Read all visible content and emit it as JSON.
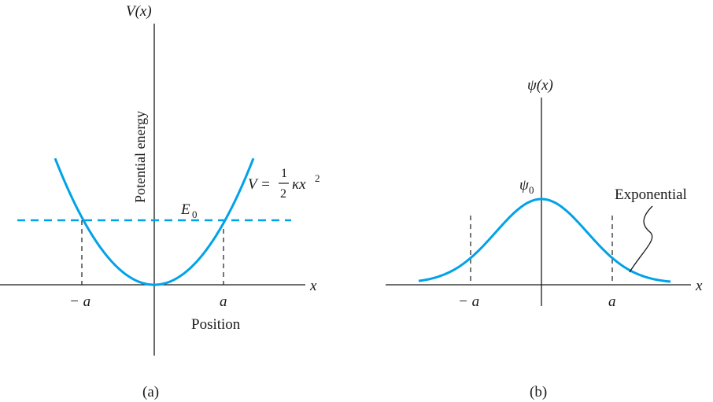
{
  "colors": {
    "curve": "#00a3e8",
    "ink": "#1a1a1a",
    "background": "#ffffff"
  },
  "panel_a": {
    "y_axis_label": "V(x)",
    "y_axis_title": "Potential energy",
    "x_axis_label": "x",
    "x_axis_title": "Position",
    "tick_neg_a": "− a",
    "tick_a": "a",
    "energy_label": "E",
    "energy_subscript": "0",
    "formula_lhs": "V =",
    "formula_num": "1",
    "formula_den": "2",
    "formula_rhs": "κx",
    "formula_exp": "2",
    "caption": "(a)"
  },
  "panel_b": {
    "y_axis_label": "ψ(x)",
    "x_axis_label": "x",
    "tick_neg_a": "− a",
    "tick_a": "a",
    "peak_label": "ψ",
    "peak_subscript": "0",
    "annotation": "Exponential",
    "caption": "(b)"
  }
}
